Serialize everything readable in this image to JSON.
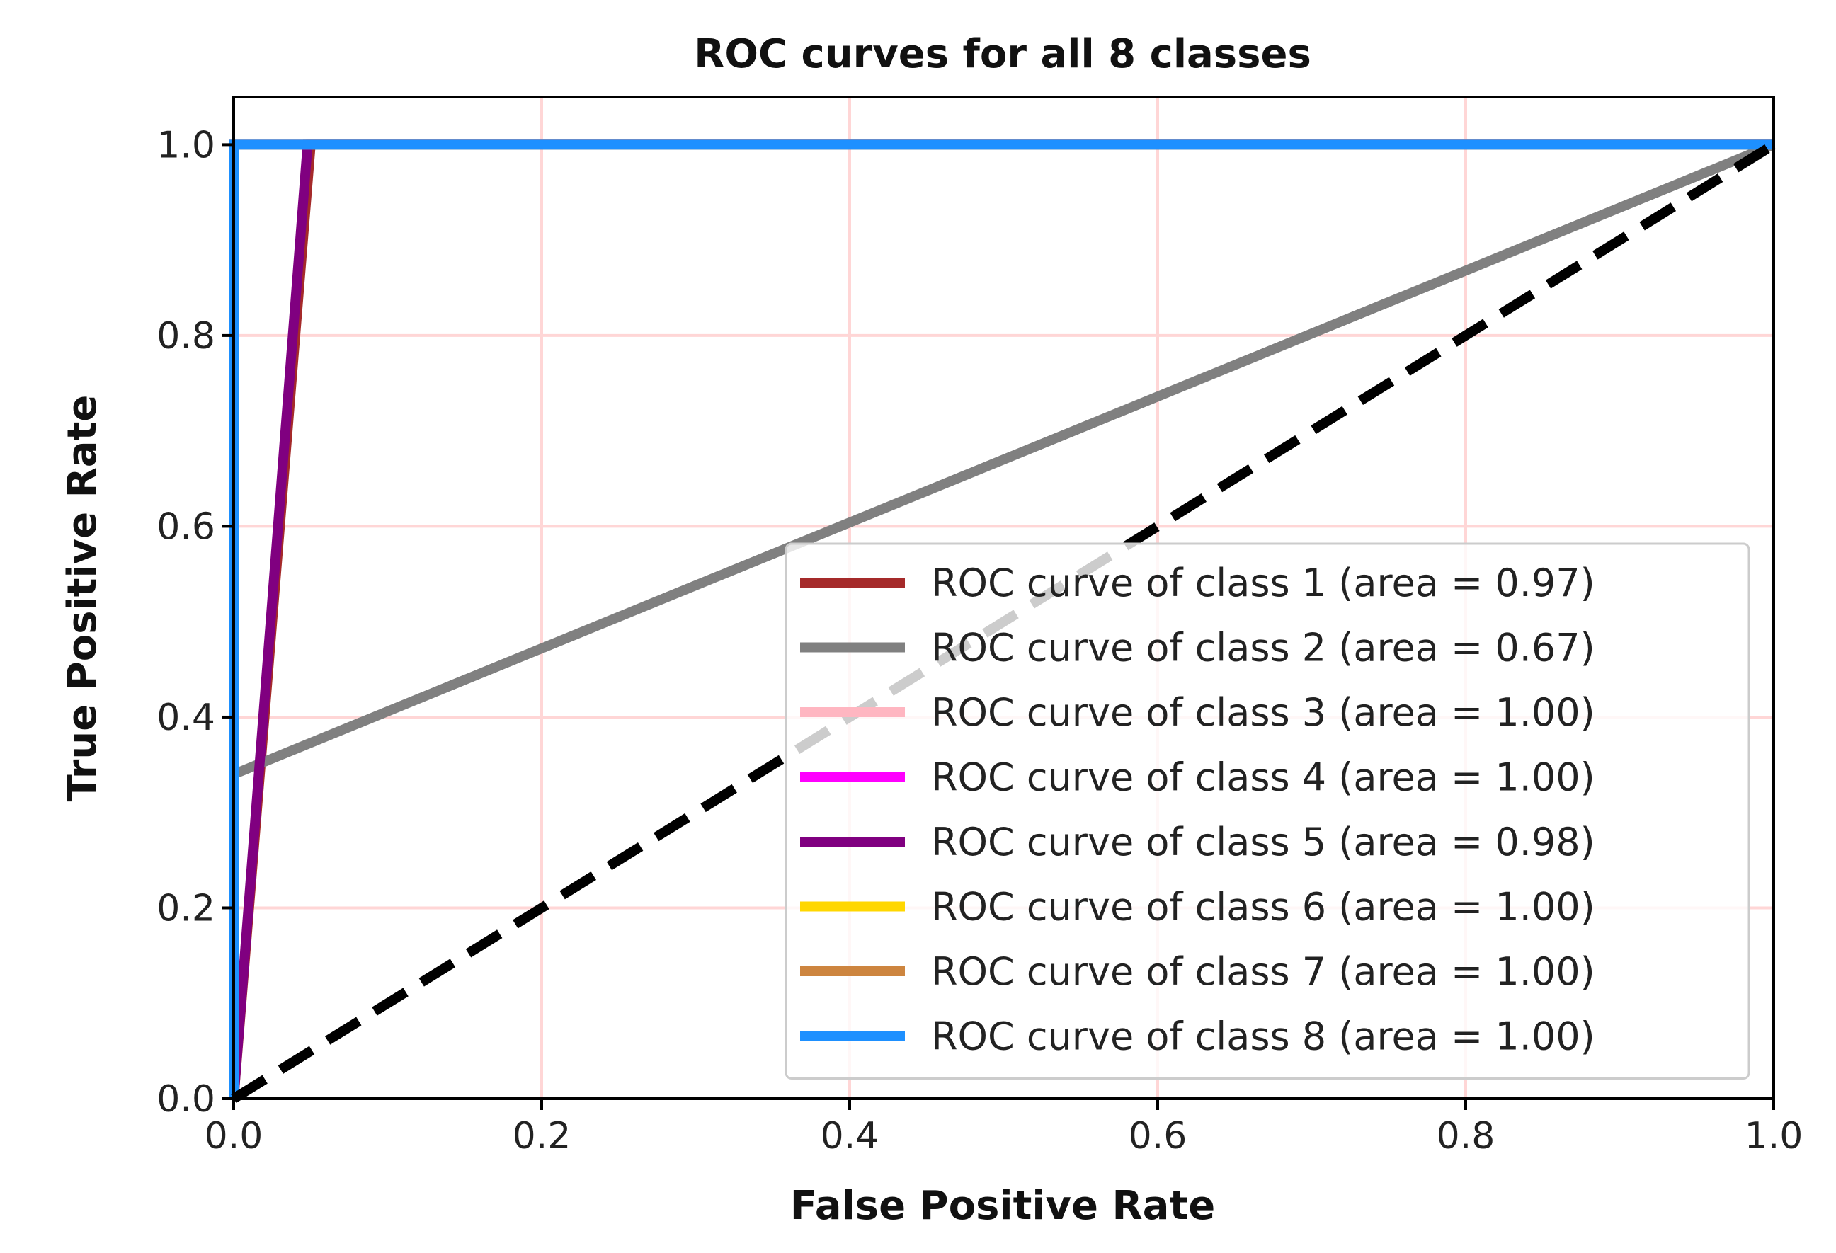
{
  "chart_data": {
    "type": "line",
    "title": "ROC curves for all 8 classes",
    "xlabel": "False Positive Rate",
    "ylabel": "True Positive Rate",
    "xlim": [
      0.0,
      1.0
    ],
    "ylim": [
      0.0,
      1.05
    ],
    "xticks": [
      "0.0",
      "0.2",
      "0.4",
      "0.6",
      "0.8",
      "1.0"
    ],
    "yticks": [
      "0.0",
      "0.2",
      "0.4",
      "0.6",
      "0.8",
      "1.0"
    ],
    "grid": true,
    "grid_color": "#ffd6d6",
    "legend_position": "lower-right",
    "series": [
      {
        "name": "ROC curve of class 1 (area = 0.97)",
        "color": "#a52a2a",
        "x": [
          0.0,
          0.0,
          0.05,
          1.0
        ],
        "y": [
          0.0,
          0.0,
          1.0,
          1.0
        ]
      },
      {
        "name": "ROC curve of class 2 (area = 0.67)",
        "color": "#808080",
        "x": [
          0.0,
          0.0,
          1.0
        ],
        "y": [
          0.0,
          0.34,
          1.0
        ]
      },
      {
        "name": "ROC curve of class 3 (area = 1.00)",
        "color": "#ffb6c1",
        "x": [
          0.0,
          0.0,
          1.0
        ],
        "y": [
          0.0,
          1.0,
          1.0
        ]
      },
      {
        "name": "ROC curve of class 4 (area = 1.00)",
        "color": "#ff00ff",
        "x": [
          0.0,
          0.0,
          1.0
        ],
        "y": [
          0.0,
          1.0,
          1.0
        ]
      },
      {
        "name": "ROC curve of class 5 (area = 0.98)",
        "color": "#800080",
        "x": [
          0.0,
          0.0,
          0.048,
          1.0
        ],
        "y": [
          0.0,
          0.0,
          1.0,
          1.0
        ]
      },
      {
        "name": "ROC curve of class 6 (area = 1.00)",
        "color": "#ffd700",
        "x": [
          0.0,
          0.0,
          1.0
        ],
        "y": [
          0.0,
          1.0,
          1.0
        ]
      },
      {
        "name": "ROC curve of class 7 (area = 1.00)",
        "color": "#cd853f",
        "x": [
          0.0,
          0.0,
          1.0
        ],
        "y": [
          0.0,
          1.0,
          1.0
        ]
      },
      {
        "name": "ROC curve of class 8 (area = 1.00)",
        "color": "#1e90ff",
        "x": [
          0.0,
          0.0,
          1.0
        ],
        "y": [
          0.0,
          1.0,
          1.0
        ]
      }
    ],
    "reference_line": {
      "color": "#000000",
      "style": "dashed",
      "x": [
        0.0,
        1.0
      ],
      "y": [
        0.0,
        1.0
      ]
    }
  }
}
